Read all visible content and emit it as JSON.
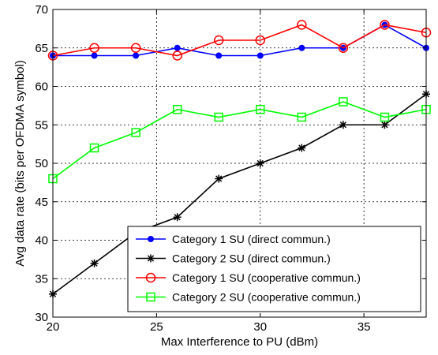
{
  "chart_data": {
    "type": "line",
    "title": "",
    "xlabel": "Max Interference to PU (dBm)",
    "ylabel": "Avg data rate (bits per OFDMA symbol)",
    "xlim": [
      20,
      38
    ],
    "ylim": [
      30,
      70
    ],
    "xticks": [
      20,
      25,
      30,
      35
    ],
    "yticks": [
      30,
      35,
      40,
      45,
      50,
      55,
      60,
      65,
      70
    ],
    "grid": true,
    "legend_position": "bottom-right",
    "x": [
      20,
      22,
      24,
      26,
      28,
      30,
      32,
      34,
      36,
      38
    ],
    "series": [
      {
        "name": "Category 1 SU (direct commun.)",
        "color": "#0000ff",
        "marker": "dot",
        "values": [
          64,
          64,
          64,
          65,
          64,
          64,
          65,
          65,
          68,
          65
        ]
      },
      {
        "name": "Category 2 SU (direct commun.)",
        "color": "#000000",
        "marker": "asterisk",
        "values": [
          33,
          37,
          41,
          43,
          48,
          50,
          52,
          55,
          55,
          59
        ]
      },
      {
        "name": "Category 1 SU (cooperative commun.)",
        "color": "#ff0000",
        "marker": "circle",
        "values": [
          64,
          65,
          65,
          64,
          66,
          66,
          68,
          65,
          68,
          67
        ]
      },
      {
        "name": "Category 2 SU (cooperative commun.)",
        "color": "#00ff00",
        "marker": "square",
        "values": [
          48,
          52,
          54,
          57,
          56,
          57,
          56,
          58,
          56,
          57
        ]
      }
    ]
  }
}
